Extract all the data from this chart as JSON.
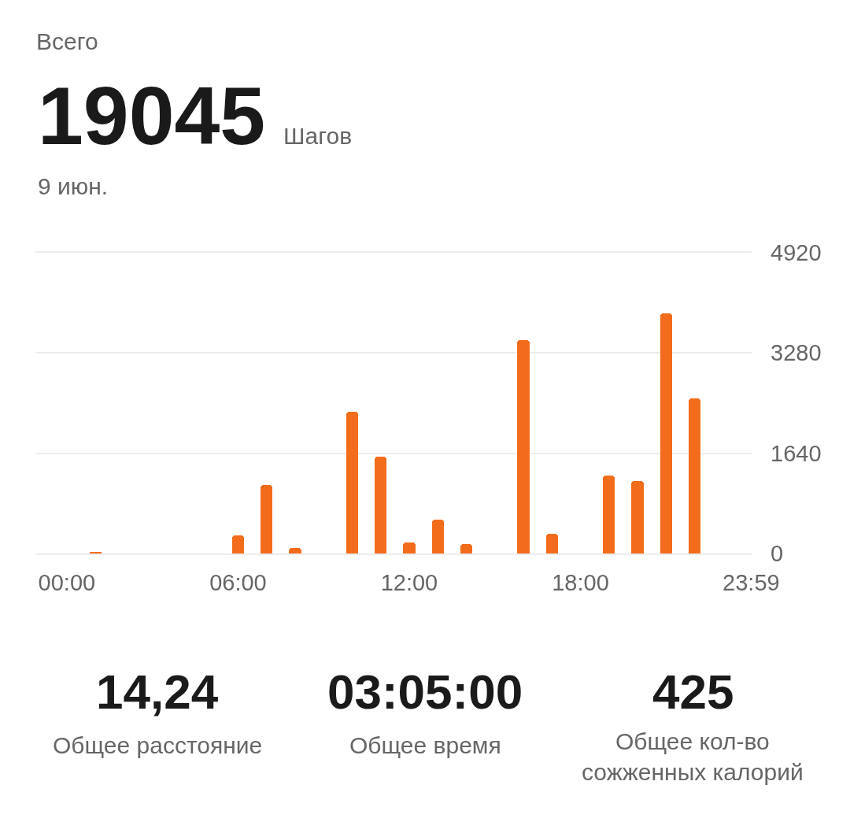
{
  "chart_data": {
    "type": "bar",
    "title": "Всего",
    "annotations": [
      "19045",
      "Шагов",
      "9 июн.",
      "14,24",
      "Общее расстояние",
      "03:05:00",
      "Общее время",
      "425",
      "Общее кол-во сожженных калорий"
    ],
    "x": [
      1,
      6,
      7,
      8,
      10,
      11,
      12,
      13,
      14,
      16,
      17,
      19,
      20,
      21,
      22
    ],
    "values": [
      20,
      300,
      1120,
      90,
      2320,
      1580,
      180,
      560,
      150,
      3490,
      320,
      1270,
      1190,
      3930,
      2540
    ],
    "color": "#f36c1b",
    "xlim": [
      -1.1,
      24
    ],
    "xticks": [
      {
        "value": 0,
        "label": "00:00"
      },
      {
        "value": 6,
        "label": "06:00"
      },
      {
        "value": 12,
        "label": "12:00"
      },
      {
        "value": 18,
        "label": "18:00"
      },
      {
        "value": 23.983,
        "label": "23:59"
      }
    ],
    "ylim": [
      0,
      4920
    ],
    "yticks": [
      0,
      1640,
      3280,
      4920
    ],
    "grid": "y"
  }
}
